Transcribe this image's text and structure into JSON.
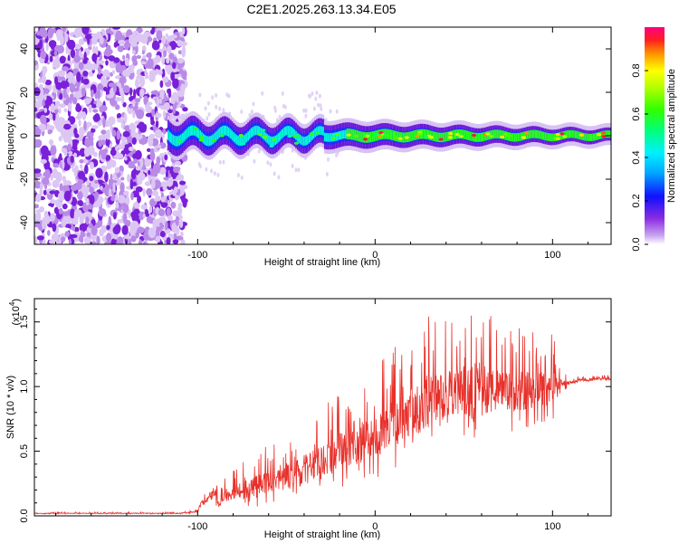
{
  "title": "C2E1.2025.263.13.34.E05",
  "colors": {
    "snr_line": "#e8302a",
    "spectrum_low": "#7b1fe0",
    "spectrum_mid": "#00e0ff",
    "spectrum_high": "#ff1060"
  },
  "chart_data": [
    {
      "type": "heatmap",
      "title": "C2E1.2025.263.13.34.E05",
      "xlabel": "Height of straight line (km)",
      "ylabel": "Frequency (Hz)",
      "xlim": [
        -192,
        133
      ],
      "ylim": [
        -50,
        50
      ],
      "xticks": [
        -100,
        0,
        100
      ],
      "xtick_labels": [
        "-100",
        "0",
        "100"
      ],
      "yticks": [
        -40,
        -20,
        0,
        20,
        40
      ],
      "ytick_labels": [
        "-40",
        "-20",
        "0",
        "20",
        "40"
      ],
      "colorbar": {
        "label": "Normalized spectral amplitude",
        "range": [
          0,
          1
        ],
        "ticks": [
          0.0,
          0.2,
          0.4,
          0.6,
          0.8
        ],
        "tick_labels": [
          "0.0",
          "0.2",
          "0.4",
          "0.6",
          "0.8"
        ]
      },
      "noise_region_x": [
        -192,
        -107
      ],
      "signal_band": {
        "x_start": -117,
        "x_end": 133,
        "center_freq_hz": 0,
        "half_width_hz_start": 7,
        "half_width_hz_end": 3
      }
    },
    {
      "type": "line",
      "xlabel": "Height of straight line (km)",
      "ylabel": "SNR (10 * v/v)",
      "y_exponent_label": "(x10",
      "y_exponent_value": "4",
      "y_exponent_close": ")",
      "xlim": [
        -192,
        133
      ],
      "ylim": [
        0,
        1.68
      ],
      "xticks": [
        -100,
        0,
        100
      ],
      "xtick_labels": [
        "-100",
        "0",
        "100"
      ],
      "yticks": [
        0.0,
        0.5,
        1.0,
        1.5
      ],
      "ytick_labels": [
        "0.0",
        "0.5",
        "1.0",
        "1.5"
      ],
      "series": [
        {
          "name": "SNR",
          "x": [
            -192,
            -150,
            -110,
            -100,
            -98,
            -94,
            -91,
            -88,
            -85,
            -80,
            -75,
            -70,
            -65,
            -60,
            -55,
            -50,
            -45,
            -40,
            -35,
            -30,
            -25,
            -20,
            -15,
            -10,
            -5,
            0,
            5,
            10,
            15,
            20,
            25,
            30,
            35,
            40,
            45,
            50,
            55,
            60,
            65,
            70,
            75,
            80,
            85,
            90,
            95,
            100,
            103,
            106,
            110,
            115,
            120,
            125,
            133
          ],
          "base": [
            0.02,
            0.02,
            0.02,
            0.03,
            0.1,
            0.12,
            0.18,
            0.1,
            0.15,
            0.18,
            0.2,
            0.22,
            0.24,
            0.25,
            0.27,
            0.3,
            0.32,
            0.35,
            0.38,
            0.42,
            0.45,
            0.5,
            0.52,
            0.55,
            0.58,
            0.6,
            0.65,
            0.72,
            0.78,
            0.82,
            0.86,
            0.9,
            0.92,
            0.94,
            0.95,
            0.95,
            0.96,
            0.96,
            0.96,
            0.96,
            0.96,
            0.97,
            0.97,
            0.98,
            0.98,
            0.98,
            1.0,
            1.02,
            1.03,
            1.05,
            1.05,
            1.06,
            1.06
          ],
          "spread": [
            0.01,
            0.01,
            0.01,
            0.02,
            0.06,
            0.1,
            0.12,
            0.1,
            0.15,
            0.18,
            0.22,
            0.25,
            0.28,
            0.3,
            0.32,
            0.35,
            0.38,
            0.4,
            0.42,
            0.44,
            0.45,
            0.48,
            0.5,
            0.52,
            0.55,
            0.55,
            0.58,
            0.6,
            0.62,
            0.65,
            0.7,
            0.68,
            0.62,
            0.6,
            0.58,
            0.6,
            0.62,
            0.62,
            0.6,
            0.58,
            0.55,
            0.52,
            0.5,
            0.48,
            0.46,
            0.44,
            0.3,
            0.1,
            0.04,
            0.03,
            0.03,
            0.03,
            0.03
          ]
        }
      ]
    }
  ]
}
